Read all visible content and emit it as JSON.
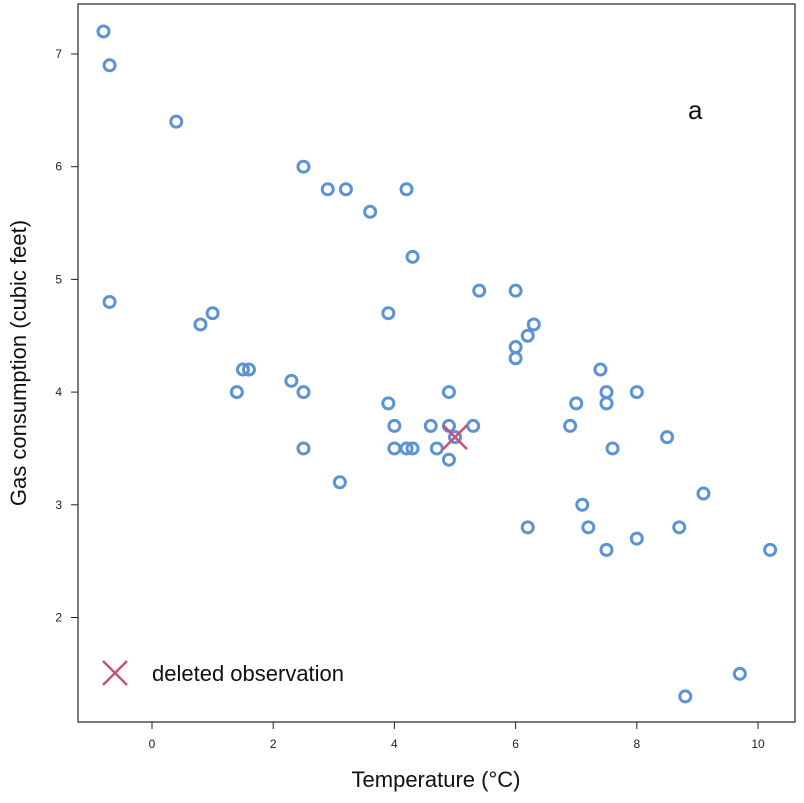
{
  "chart_data": {
    "type": "scatter",
    "title": "",
    "annotation": "a",
    "xlabel": "Temperature (°C)",
    "ylabel": "Gas consumption (cubic feet)",
    "xlim": [
      -1.2,
      10.6
    ],
    "ylim": [
      1.1,
      7.45
    ],
    "xticks": [
      0,
      2,
      4,
      6,
      8,
      10
    ],
    "yticks": [
      2,
      3,
      4,
      5,
      6,
      7
    ],
    "grid": false,
    "point_color": "#5b93d3",
    "deleted_color": "#c8507a",
    "legend": {
      "label": "deleted observation",
      "placement": "bottom-left"
    },
    "points": [
      [
        -0.8,
        7.2
      ],
      [
        -0.7,
        6.9
      ],
      [
        0.4,
        6.4
      ],
      [
        2.5,
        6.0
      ],
      [
        2.9,
        5.8
      ],
      [
        3.2,
        5.8
      ],
      [
        4.2,
        5.8
      ],
      [
        3.6,
        5.6
      ],
      [
        4.3,
        5.2
      ],
      [
        -0.7,
        4.8
      ],
      [
        0.8,
        4.6
      ],
      [
        1.0,
        4.7
      ],
      [
        3.9,
        4.7
      ],
      [
        5.4,
        4.9
      ],
      [
        6.0,
        4.9
      ],
      [
        6.3,
        4.6
      ],
      [
        6.2,
        4.5
      ],
      [
        6.0,
        4.4
      ],
      [
        6.0,
        4.3
      ],
      [
        1.5,
        4.2
      ],
      [
        1.6,
        4.2
      ],
      [
        2.3,
        4.1
      ],
      [
        1.4,
        4.0
      ],
      [
        2.5,
        4.0
      ],
      [
        4.9,
        4.0
      ],
      [
        3.9,
        3.9
      ],
      [
        4.0,
        3.7
      ],
      [
        4.6,
        3.7
      ],
      [
        4.9,
        3.7
      ],
      [
        5.3,
        3.7
      ],
      [
        5.0,
        3.6
      ],
      [
        4.0,
        3.5
      ],
      [
        4.2,
        3.5
      ],
      [
        4.3,
        3.5
      ],
      [
        4.7,
        3.5
      ],
      [
        2.5,
        3.5
      ],
      [
        4.9,
        3.4
      ],
      [
        3.1,
        3.2
      ],
      [
        7.4,
        4.2
      ],
      [
        7.0,
        3.9
      ],
      [
        7.5,
        4.0
      ],
      [
        7.5,
        3.9
      ],
      [
        8.0,
        4.0
      ],
      [
        6.9,
        3.7
      ],
      [
        7.6,
        3.5
      ],
      [
        8.5,
        3.6
      ],
      [
        7.1,
        3.0
      ],
      [
        9.1,
        3.1
      ],
      [
        6.2,
        2.8
      ],
      [
        7.2,
        2.8
      ],
      [
        8.7,
        2.8
      ],
      [
        7.5,
        2.6
      ],
      [
        8.0,
        2.7
      ],
      [
        10.2,
        2.6
      ],
      [
        9.7,
        1.5
      ],
      [
        8.8,
        1.3
      ]
    ],
    "deleted_points": [
      [
        5.0,
        3.6
      ]
    ]
  }
}
